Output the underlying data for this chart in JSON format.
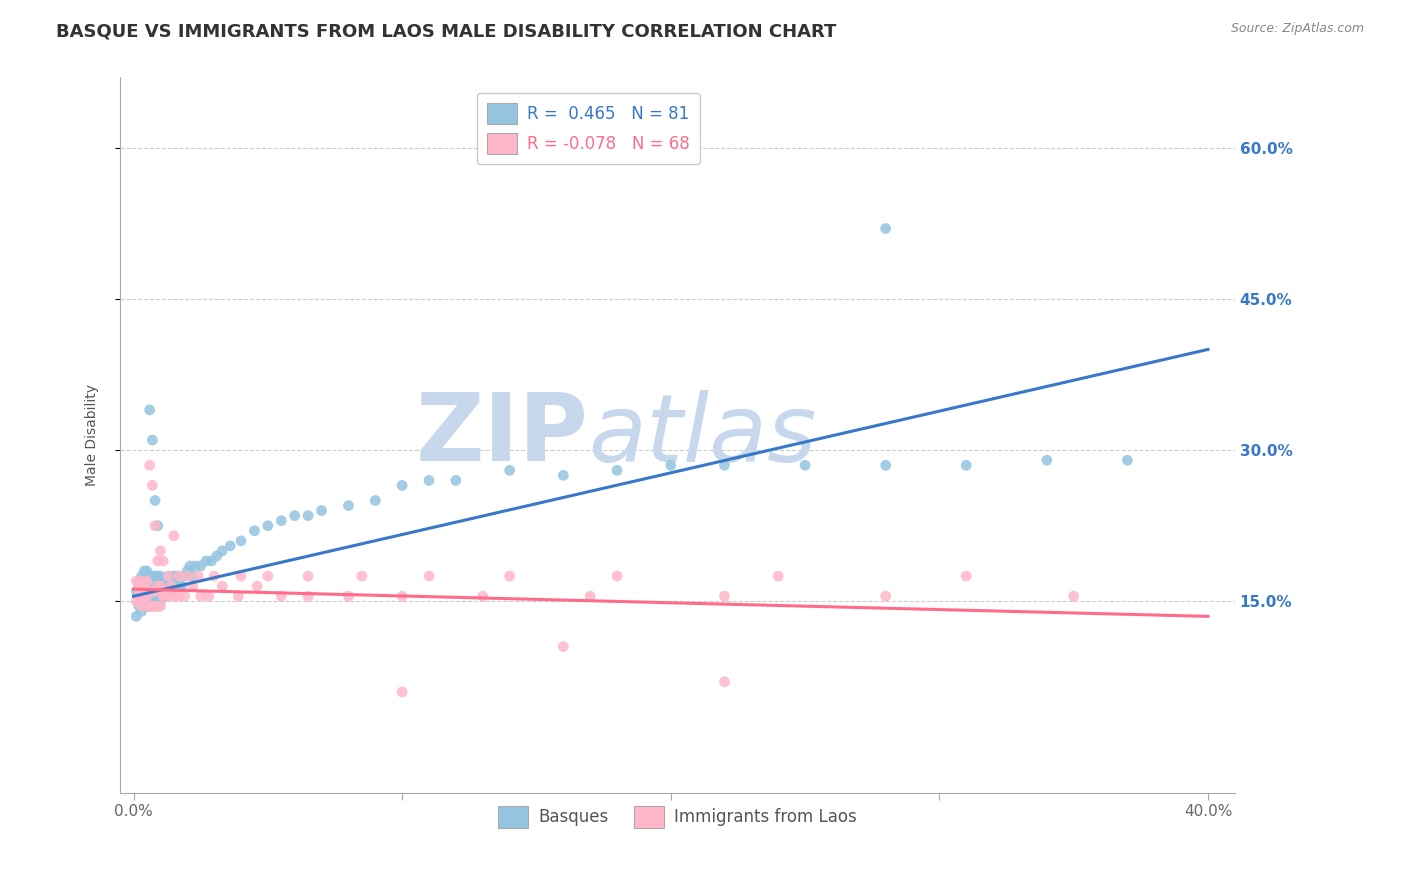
{
  "title": "BASQUE VS IMMIGRANTS FROM LAOS MALE DISABILITY CORRELATION CHART",
  "source_text": "Source: ZipAtlas.com",
  "ylabel": "Male Disability",
  "xlim": [
    -0.005,
    0.41
  ],
  "ylim": [
    -0.04,
    0.67
  ],
  "xtick_labels": [
    "0.0%",
    "",
    "",
    "",
    "40.0%"
  ],
  "xtick_vals": [
    0.0,
    0.1,
    0.2,
    0.3,
    0.4
  ],
  "ytick_labels": [
    "15.0%",
    "30.0%",
    "45.0%",
    "60.0%"
  ],
  "ytick_vals": [
    0.15,
    0.3,
    0.45,
    0.6
  ],
  "basque_color": "#94C4E0",
  "laos_color": "#FFB6C8",
  "basque_line_color": "#3878C8",
  "laos_line_color": "#FF6B8A",
  "R_basque": 0.465,
  "N_basque": 81,
  "R_laos": -0.078,
  "N_laos": 68,
  "title_fontsize": 13,
  "axis_label_fontsize": 10,
  "tick_fontsize": 11,
  "legend_fontsize": 12,
  "watermark_text": "ZIPatlas",
  "watermark_color": "#C8D8EC",
  "background_color": "#FFFFFF",
  "grid_color": "#CCCCCC",
  "basque_x": [
    0.001,
    0.001,
    0.002,
    0.002,
    0.003,
    0.003,
    0.003,
    0.004,
    0.004,
    0.004,
    0.005,
    0.005,
    0.005,
    0.005,
    0.006,
    0.006,
    0.006,
    0.007,
    0.007,
    0.007,
    0.007,
    0.008,
    0.008,
    0.008,
    0.009,
    0.009,
    0.009,
    0.01,
    0.01,
    0.01,
    0.011,
    0.011,
    0.012,
    0.012,
    0.013,
    0.013,
    0.014,
    0.015,
    0.015,
    0.016,
    0.016,
    0.017,
    0.018,
    0.019,
    0.02,
    0.021,
    0.022,
    0.023,
    0.025,
    0.027,
    0.029,
    0.031,
    0.033,
    0.036,
    0.04,
    0.045,
    0.05,
    0.055,
    0.06,
    0.065,
    0.07,
    0.08,
    0.09,
    0.1,
    0.11,
    0.12,
    0.14,
    0.16,
    0.18,
    0.2,
    0.22,
    0.25,
    0.28,
    0.31,
    0.34,
    0.37,
    0.006,
    0.007,
    0.008,
    0.009,
    0.28
  ],
  "basque_y": [
    0.135,
    0.16,
    0.145,
    0.17,
    0.14,
    0.155,
    0.175,
    0.145,
    0.16,
    0.18,
    0.145,
    0.155,
    0.165,
    0.18,
    0.145,
    0.16,
    0.175,
    0.145,
    0.155,
    0.165,
    0.175,
    0.15,
    0.16,
    0.175,
    0.155,
    0.165,
    0.175,
    0.15,
    0.16,
    0.175,
    0.155,
    0.17,
    0.155,
    0.165,
    0.16,
    0.175,
    0.165,
    0.16,
    0.175,
    0.165,
    0.175,
    0.165,
    0.165,
    0.175,
    0.18,
    0.185,
    0.175,
    0.185,
    0.185,
    0.19,
    0.19,
    0.195,
    0.2,
    0.205,
    0.21,
    0.22,
    0.225,
    0.23,
    0.235,
    0.235,
    0.24,
    0.245,
    0.25,
    0.265,
    0.27,
    0.27,
    0.28,
    0.275,
    0.28,
    0.285,
    0.285,
    0.285,
    0.285,
    0.285,
    0.29,
    0.29,
    0.34,
    0.31,
    0.25,
    0.225,
    0.52
  ],
  "laos_x": [
    0.001,
    0.001,
    0.002,
    0.002,
    0.003,
    0.003,
    0.003,
    0.004,
    0.004,
    0.005,
    0.005,
    0.005,
    0.006,
    0.006,
    0.007,
    0.007,
    0.008,
    0.008,
    0.009,
    0.009,
    0.01,
    0.01,
    0.011,
    0.012,
    0.013,
    0.014,
    0.015,
    0.017,
    0.019,
    0.022,
    0.025,
    0.028,
    0.033,
    0.039,
    0.046,
    0.055,
    0.065,
    0.08,
    0.1,
    0.13,
    0.17,
    0.22,
    0.28,
    0.35,
    0.006,
    0.007,
    0.008,
    0.009,
    0.01,
    0.011,
    0.013,
    0.015,
    0.017,
    0.02,
    0.024,
    0.03,
    0.04,
    0.05,
    0.065,
    0.085,
    0.11,
    0.14,
    0.18,
    0.24,
    0.31,
    0.22,
    0.16,
    0.1
  ],
  "laos_y": [
    0.15,
    0.17,
    0.155,
    0.165,
    0.145,
    0.155,
    0.17,
    0.15,
    0.165,
    0.145,
    0.155,
    0.17,
    0.145,
    0.16,
    0.145,
    0.16,
    0.145,
    0.16,
    0.145,
    0.165,
    0.145,
    0.165,
    0.155,
    0.155,
    0.155,
    0.165,
    0.155,
    0.155,
    0.155,
    0.165,
    0.155,
    0.155,
    0.165,
    0.155,
    0.165,
    0.155,
    0.155,
    0.155,
    0.155,
    0.155,
    0.155,
    0.155,
    0.155,
    0.155,
    0.285,
    0.265,
    0.225,
    0.19,
    0.2,
    0.19,
    0.175,
    0.215,
    0.175,
    0.175,
    0.175,
    0.175,
    0.175,
    0.175,
    0.175,
    0.175,
    0.175,
    0.175,
    0.175,
    0.175,
    0.175,
    0.07,
    0.105,
    0.06
  ],
  "blue_line_x0": 0.0,
  "blue_line_y0": 0.155,
  "blue_line_x1": 0.4,
  "blue_line_y1": 0.4,
  "pink_line_x0": 0.0,
  "pink_line_y0": 0.162,
  "pink_line_x1": 0.4,
  "pink_line_y1": 0.135
}
